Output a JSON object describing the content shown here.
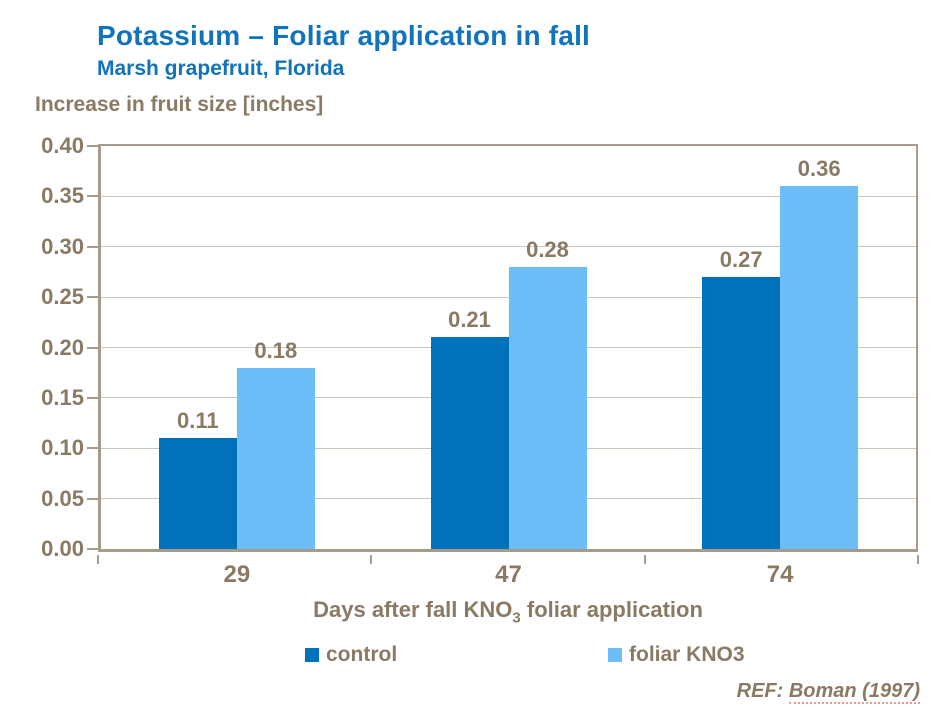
{
  "header": {
    "title": "Potassium – Foliar application in fall",
    "subtitle": "Marsh grapefruit, Florida"
  },
  "chart_data": {
    "type": "bar",
    "title": "Potassium – Foliar application in fall",
    "subtitle": "Marsh grapefruit, Florida",
    "ylabel": "Increase in fruit size [inches]",
    "xlabel_prefix": "Days after fall KNO",
    "xlabel_sub": "3",
    "xlabel_suffix": " foliar application",
    "categories": [
      "29",
      "47",
      "74"
    ],
    "series": [
      {
        "name": "control",
        "color": "#0072BC",
        "values": [
          0.11,
          0.21,
          0.27
        ]
      },
      {
        "name": "foliar KNO3",
        "color": "#6DBEF8",
        "values": [
          0.18,
          0.28,
          0.36
        ]
      }
    ],
    "ylim": [
      0,
      0.4
    ],
    "ytick_step": 0.05,
    "ytick_decimals": 2,
    "grid": true,
    "legend_position": "bottom",
    "data_labels": true
  },
  "footer": {
    "ref_prefix": "REF: ",
    "ref_citation": "Boman (1997)"
  },
  "colors": {
    "title_blue": "#1173BB",
    "label_brown": "#8A7A64",
    "axis_line": "#A79B8C",
    "gridline": "#CDC5BA",
    "control_bar": "#0072BC",
    "foliar_bar": "#6DBEF8"
  }
}
